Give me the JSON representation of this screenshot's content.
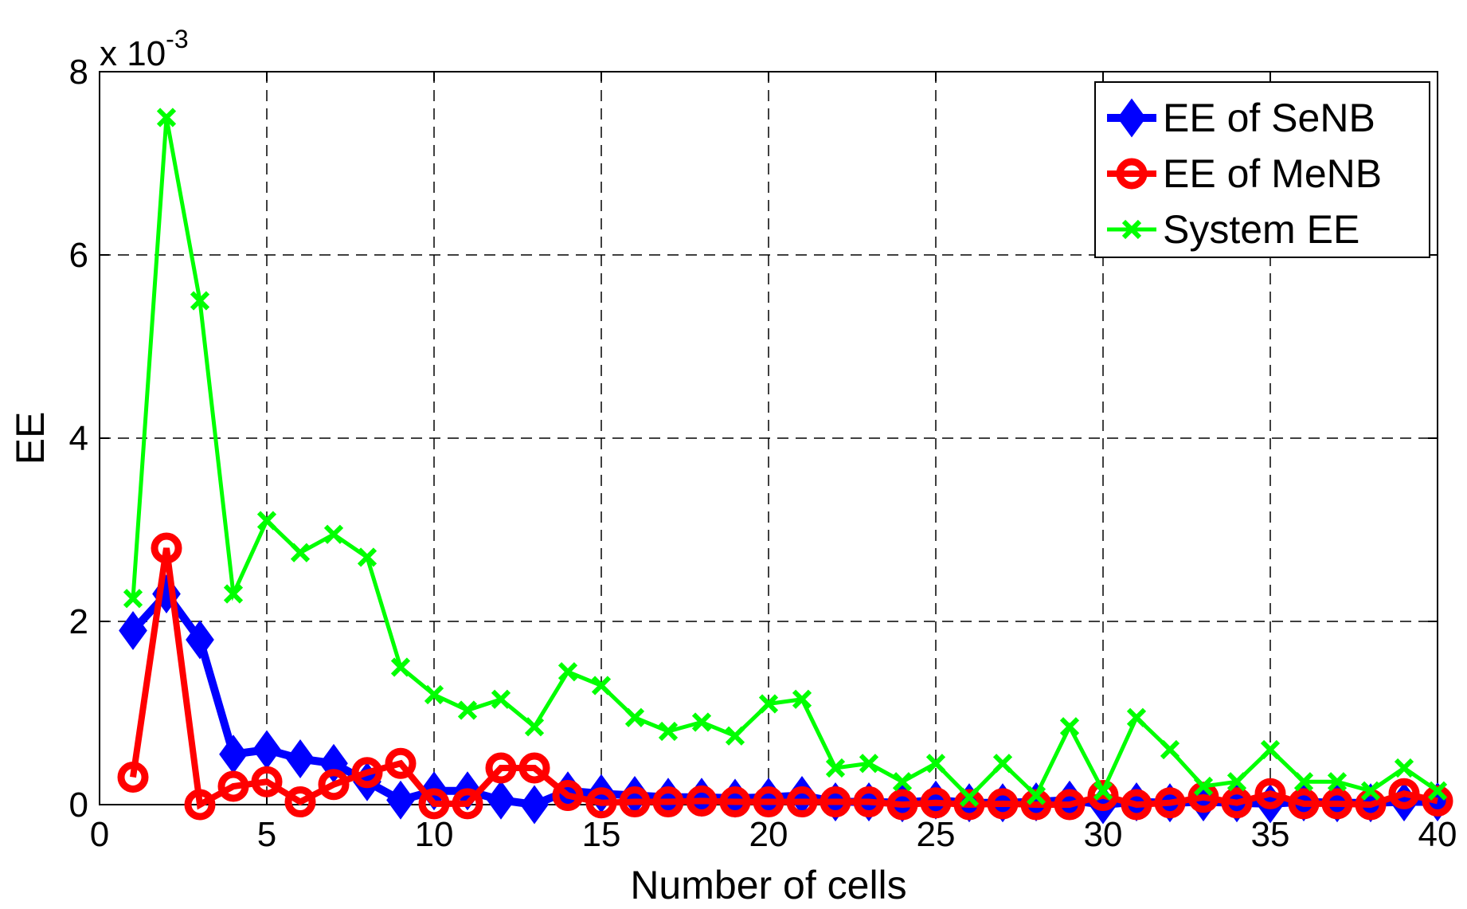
{
  "chart_data": {
    "type": "line",
    "title": "",
    "xlabel": "Number of cells",
    "ylabel": "EE",
    "y_multiplier": {
      "base": "x 10",
      "exponent": "-3"
    },
    "xlim": [
      0,
      40
    ],
    "ylim": [
      0,
      0.008
    ],
    "x_ticks": [
      0,
      5,
      10,
      15,
      20,
      25,
      30,
      35,
      40
    ],
    "x_tick_labels": [
      "0",
      "5",
      "10",
      "15",
      "20",
      "25",
      "30",
      "35",
      "40"
    ],
    "y_ticks": [
      0,
      0.002,
      0.004,
      0.006,
      0.008
    ],
    "y_tick_labels": [
      "0",
      "2",
      "4",
      "6",
      "8"
    ],
    "grid": true,
    "legend_position": "top-right",
    "x": [
      1,
      2,
      3,
      4,
      5,
      6,
      7,
      8,
      9,
      10,
      11,
      12,
      13,
      14,
      15,
      16,
      17,
      18,
      19,
      20,
      21,
      22,
      23,
      24,
      25,
      26,
      27,
      28,
      29,
      30,
      31,
      32,
      33,
      34,
      35,
      36,
      37,
      38,
      39,
      40
    ],
    "series": [
      {
        "name": "EE of SeNB",
        "color": "#0000ff",
        "marker": "diamond",
        "values": [
          0.0019,
          0.0023,
          0.0018,
          0.00055,
          0.0006,
          0.0005,
          0.00045,
          0.00025,
          5e-05,
          0.00015,
          0.00015,
          5e-05,
          0.0,
          0.00015,
          0.00012,
          0.0001,
          8e-05,
          8e-05,
          7e-05,
          8e-05,
          0.0001,
          3e-05,
          3e-05,
          2e-05,
          5e-05,
          2e-05,
          2e-05,
          3e-05,
          5e-05,
          0.0,
          3e-05,
          2e-05,
          3e-05,
          2e-05,
          1e-05,
          3e-05,
          2e-05,
          2e-05,
          3e-05,
          3e-05
        ]
      },
      {
        "name": "EE of MeNB",
        "color": "#ff0000",
        "marker": "circle",
        "values": [
          0.0003,
          0.0028,
          0.0,
          0.0002,
          0.00025,
          3e-05,
          0.00022,
          0.00035,
          0.00045,
          1e-05,
          1e-05,
          0.0004,
          0.0004,
          0.0001,
          2e-05,
          3e-05,
          3e-05,
          4e-05,
          3e-05,
          3e-05,
          3e-05,
          3e-05,
          3e-05,
          0.0,
          2e-05,
          0.0,
          1e-05,
          0.0,
          0.0,
          0.0001,
          0.0,
          2e-05,
          8e-05,
          2e-05,
          0.00012,
          1e-05,
          1e-05,
          0.0,
          0.00012,
          4e-05
        ]
      },
      {
        "name": "System EE",
        "color": "#00ff00",
        "marker": "x",
        "values": [
          0.00225,
          0.0075,
          0.0055,
          0.0023,
          0.0031,
          0.00275,
          0.00295,
          0.0027,
          0.0015,
          0.0012,
          0.00103,
          0.00115,
          0.00085,
          0.00145,
          0.0013,
          0.00095,
          0.0008,
          0.0009,
          0.00075,
          0.0011,
          0.00115,
          0.0004,
          0.00045,
          0.00025,
          0.00045,
          8e-05,
          0.00045,
          0.0001,
          0.00085,
          0.00015,
          0.00095,
          0.0006,
          0.0002,
          0.00025,
          0.0006,
          0.00025,
          0.00025,
          0.00015,
          0.0004,
          0.00015
        ]
      }
    ]
  }
}
